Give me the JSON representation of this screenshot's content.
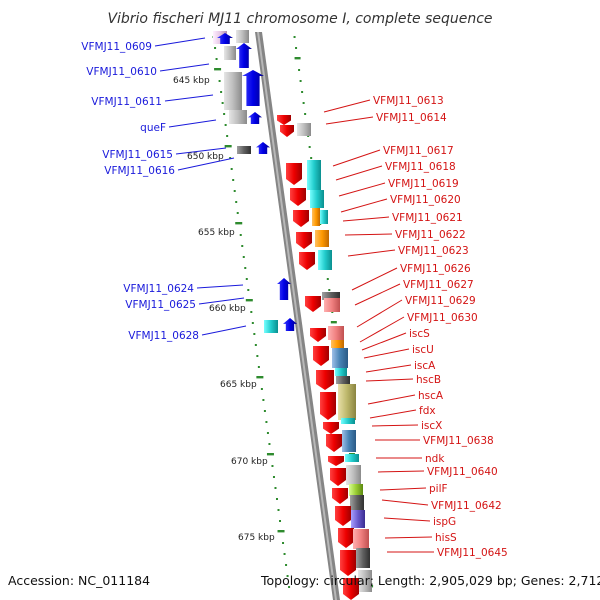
{
  "title": "Vibrio fischeri MJ11 chromosome I, complete sequence",
  "footer": {
    "accession": "Accession: NC_011184",
    "summary": "Topology: circular; Length: 2,905,029 bp; Genes: 2,712"
  },
  "ruler_labels": [
    "645 kbp",
    "650 kbp",
    "655 kbp",
    "660 kbp",
    "665 kbp",
    "670 kbp",
    "675 kbp"
  ],
  "left_labels": [
    "VFMJ11_0609",
    "VFMJ11_0610",
    "VFMJ11_0611",
    "queF",
    "VFMJ11_0615",
    "VFMJ11_0616",
    "VFMJ11_0624",
    "VFMJ11_0625",
    "VFMJ11_0628"
  ],
  "right_labels": [
    "VFMJ11_0613",
    "VFMJ11_0614",
    "VFMJ11_0617",
    "VFMJ11_0618",
    "VFMJ11_0619",
    "VFMJ11_0620",
    "VFMJ11_0621",
    "VFMJ11_0622",
    "VFMJ11_0623",
    "VFMJ11_0626",
    "VFMJ11_0627",
    "VFMJ11_0629",
    "VFMJ11_0630",
    "iscS",
    "iscU",
    "iscA",
    "hscB",
    "hscA",
    "fdx",
    "iscX",
    "VFMJ11_0638",
    "ndk",
    "VFMJ11_0640",
    "pilF",
    "VFMJ11_0642",
    "ispG",
    "hisS",
    "VFMJ11_0645"
  ],
  "colors": {
    "forward_gene": "#0000ee",
    "reverse_gene": "#ee0000",
    "backbone": "#808080",
    "ruler_tick": "#2e8b2e",
    "left_label": "#1a1adb",
    "right_label": "#d41414"
  }
}
